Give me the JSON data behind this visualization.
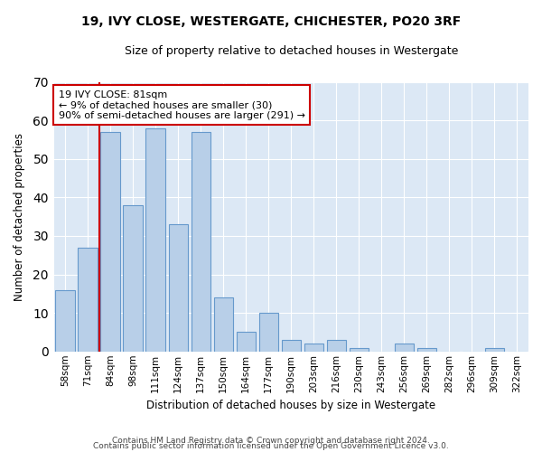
{
  "title1": "19, IVY CLOSE, WESTERGATE, CHICHESTER, PO20 3RF",
  "title2": "Size of property relative to detached houses in Westergate",
  "xlabel": "Distribution of detached houses by size in Westergate",
  "ylabel": "Number of detached properties",
  "categories": [
    "58sqm",
    "71sqm",
    "84sqm",
    "98sqm",
    "111sqm",
    "124sqm",
    "137sqm",
    "150sqm",
    "164sqm",
    "177sqm",
    "190sqm",
    "203sqm",
    "216sqm",
    "230sqm",
    "243sqm",
    "256sqm",
    "269sqm",
    "282sqm",
    "296sqm",
    "309sqm",
    "322sqm"
  ],
  "values": [
    16,
    27,
    57,
    38,
    58,
    33,
    57,
    14,
    5,
    10,
    3,
    2,
    3,
    1,
    0,
    2,
    1,
    0,
    0,
    1,
    0
  ],
  "bar_color": "#b8cfe8",
  "bar_edge_color": "#6699cc",
  "vline_color": "#cc0000",
  "annotation_line1": "19 IVY CLOSE: 81sqm",
  "annotation_line2": "← 9% of detached houses are smaller (30)",
  "annotation_line3": "90% of semi-detached houses are larger (291) →",
  "annotation_box_color": "#ffffff",
  "annotation_box_edge": "#cc0000",
  "ylim": [
    0,
    70
  ],
  "yticks": [
    0,
    10,
    20,
    30,
    40,
    50,
    60,
    70
  ],
  "background_color": "#dce8f5",
  "grid_color": "#ffffff",
  "fig_background": "#ffffff",
  "footer1": "Contains HM Land Registry data © Crown copyright and database right 2024.",
  "footer2": "Contains public sector information licensed under the Open Government Licence v3.0."
}
